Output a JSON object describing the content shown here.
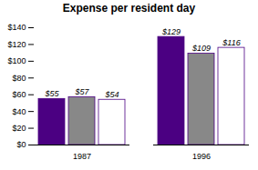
{
  "chart_data": {
    "type": "bar",
    "title": "Expense per resident day",
    "categories": [
      "1987",
      "1996"
    ],
    "series": [
      {
        "color": "#4B0082",
        "values": [
          55,
          129
        ],
        "value_labels": [
          "$55",
          "$129"
        ]
      },
      {
        "color": "#888888",
        "values": [
          57,
          109
        ],
        "value_labels": [
          "$57",
          "$109"
        ]
      },
      {
        "color": "#FFFFFF",
        "values": [
          54,
          116
        ],
        "value_labels": [
          "$54",
          "$116"
        ]
      }
    ],
    "ylim": [
      0,
      140
    ],
    "yticks": [
      {
        "value": 0,
        "label": "$0"
      },
      {
        "value": 20,
        "label": "$20"
      },
      {
        "value": 40,
        "label": "$40"
      },
      {
        "value": 60,
        "label": "$60"
      },
      {
        "value": 80,
        "label": "$80"
      },
      {
        "value": 100,
        "label": "$100"
      },
      {
        "value": 120,
        "label": "$120"
      },
      {
        "value": 140,
        "label": "$140"
      }
    ],
    "grid": false,
    "data_labels": true
  }
}
